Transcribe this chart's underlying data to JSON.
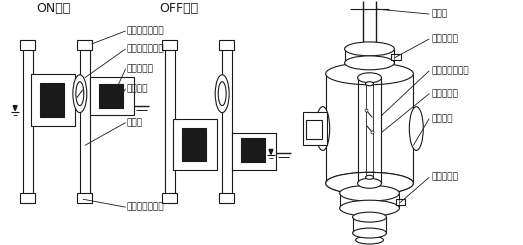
{
  "bg_color": "#ffffff",
  "line_color": "#1a1a1a",
  "text_color": "#1a1a1a",
  "on_label": "ON状態",
  "off_label": "OFF状態",
  "label_upper_stopper": "上部ストッパー",
  "label_reed_switch": "リードスイッチ",
  "label_magnet": "マグネット",
  "label_float": "フロート",
  "label_stem": "ステム",
  "label_lower_stopper": "下部ストッパー",
  "label_stopper_top": "ストッパー",
  "label_stopper_bottom": "ストッパー",
  "fontsize_title": 9,
  "fontsize_label": 6.5
}
